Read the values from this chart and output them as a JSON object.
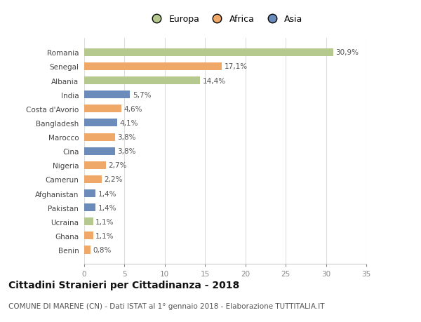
{
  "categories": [
    "Romania",
    "Senegal",
    "Albania",
    "India",
    "Costa d'Avorio",
    "Bangladesh",
    "Marocco",
    "Cina",
    "Nigeria",
    "Camerun",
    "Afghanistan",
    "Pakistan",
    "Ucraina",
    "Ghana",
    "Benin"
  ],
  "values": [
    30.9,
    17.1,
    14.4,
    5.7,
    4.6,
    4.1,
    3.8,
    3.8,
    2.7,
    2.2,
    1.4,
    1.4,
    1.1,
    1.1,
    0.8
  ],
  "labels": [
    "30,9%",
    "17,1%",
    "14,4%",
    "5,7%",
    "4,6%",
    "4,1%",
    "3,8%",
    "3,8%",
    "2,7%",
    "2,2%",
    "1,4%",
    "1,4%",
    "1,1%",
    "1,1%",
    "0,8%"
  ],
  "bar_colors": [
    "#b5c98e",
    "#f0a868",
    "#b5c98e",
    "#6b8cba",
    "#f0a868",
    "#6b8cba",
    "#f0a868",
    "#6b8cba",
    "#f0a868",
    "#f0a868",
    "#6b8cba",
    "#6b8cba",
    "#b5c98e",
    "#f0a868",
    "#f0a868"
  ],
  "xlim": [
    0,
    35
  ],
  "xticks": [
    0,
    5,
    10,
    15,
    20,
    25,
    30,
    35
  ],
  "title": "Cittadini Stranieri per Cittadinanza - 2018",
  "subtitle": "COMUNE DI MARENE (CN) - Dati ISTAT al 1° gennaio 2018 - Elaborazione TUTTITALIA.IT",
  "legend_labels": [
    "Europa",
    "Africa",
    "Asia"
  ],
  "legend_colors": [
    "#b5c98e",
    "#f0a868",
    "#6b8cba"
  ],
  "bg_color": "#ffffff",
  "grid_color": "#dddddd",
  "bar_height": 0.55,
  "label_fontsize": 7.5,
  "tick_fontsize": 7.5,
  "title_fontsize": 10,
  "subtitle_fontsize": 7.5
}
